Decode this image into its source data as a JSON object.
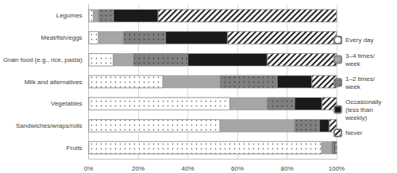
{
  "chart_data": {
    "type": "bar",
    "orientation": "horizontal",
    "stacked": true,
    "grid": true,
    "legend": "right",
    "categories": [
      "Legumes",
      "Meat/fish/eggs",
      "Grain food (e.g., rice, pasta)",
      "Milk and alternatives",
      "Vegetables",
      "Sandwiches/wraps/rolls",
      "Fruits"
    ],
    "series": [
      {
        "name": "Every day",
        "color": "#ffffff",
        "values": [
          2,
          4,
          10,
          30,
          57,
          53,
          94
        ]
      },
      {
        "name": "3–4 times/week",
        "color": "#a6a6a6",
        "values": [
          2,
          10,
          8,
          23,
          15,
          30,
          4
        ]
      },
      {
        "name": "1–2 times/week",
        "color": "#7f7f7f",
        "values": [
          6,
          17,
          22,
          23,
          11,
          10,
          1
        ]
      },
      {
        "name": "Occasionally (less than weekly)",
        "color": "#1a1a1a",
        "values": [
          18,
          25,
          32,
          14,
          11,
          4,
          0.5
        ]
      },
      {
        "name": "Never",
        "color": "#ffffff",
        "values": [
          72,
          44,
          28,
          10,
          6,
          3,
          0.5
        ]
      }
    ],
    "xlim": [
      0,
      100
    ],
    "xticks": [
      {
        "value": 0,
        "label": "0%"
      },
      {
        "value": 20,
        "label": "20%"
      },
      {
        "value": 40,
        "label": "40%"
      },
      {
        "value": 60,
        "label": "60%"
      },
      {
        "value": 80,
        "label": "80%"
      },
      {
        "value": 100,
        "label": "100%"
      }
    ]
  }
}
